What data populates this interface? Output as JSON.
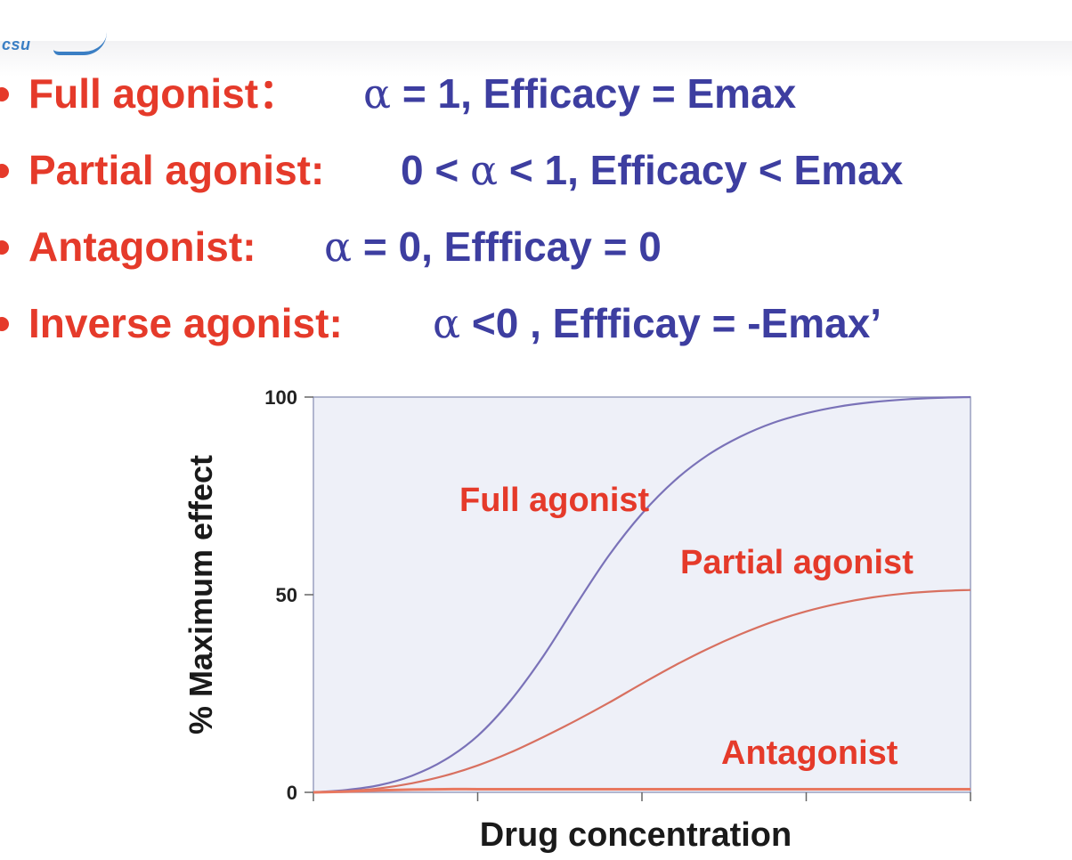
{
  "header": {
    "logo_text": "csu"
  },
  "bullets": [
    {
      "term": "Full agonist：",
      "formula_greek": "α",
      "formula_rest": " = 1,  Efficacy = Emax"
    },
    {
      "term": "Partial agonist:",
      "formula_prefix": " 0 < ",
      "formula_greek": "α",
      "formula_rest": " < 1,   Efficacy < Emax"
    },
    {
      "term": "Antagonist:",
      "formula_greek": "α",
      "formula_rest": " = 0,  Effficay = 0"
    },
    {
      "term": "Inverse agonist:",
      "formula_greek": "α",
      "formula_rest": " <0 ,  Effficay = -Emax’"
    }
  ],
  "colors": {
    "term": "#e53a2a",
    "formula": "#3d3ea0",
    "plot_background": "#eef0f8",
    "full_agonist_curve": "#7a72b8",
    "partial_agonist_curve": "#d87060",
    "antagonist_curve": "#e87860",
    "curve_label": "#e53a2a"
  },
  "chart_data": {
    "type": "line",
    "xlabel": "Drug concentration",
    "ylabel": "% Maximum effect",
    "ylim": [
      0,
      100
    ],
    "xlim": [
      0,
      1
    ],
    "yticks": [
      "0",
      "50",
      "100"
    ],
    "xticks_count": 5,
    "grid": false,
    "x": [
      0,
      0.05,
      0.1,
      0.15,
      0.2,
      0.25,
      0.3,
      0.35,
      0.4,
      0.45,
      0.5,
      0.55,
      0.6,
      0.65,
      0.7,
      0.75,
      0.8,
      0.85,
      0.9,
      0.95,
      1.0
    ],
    "series": [
      {
        "name": "Full agonist",
        "color": "#7a72b8",
        "values": [
          0,
          0.6,
          1.8,
          4.2,
          8.2,
          14.3,
          23.2,
          34.5,
          47.5,
          60.0,
          70.5,
          78.9,
          85.3,
          90.0,
          93.5,
          95.9,
          97.6,
          98.7,
          99.4,
          99.8,
          100
        ]
      },
      {
        "name": "Partial agonist",
        "color": "#d87060",
        "values": [
          0,
          0.3,
          1.0,
          2.3,
          4.2,
          6.8,
          10.1,
          14.0,
          18.2,
          22.7,
          27.5,
          32.1,
          36.3,
          40.0,
          43.2,
          45.8,
          47.8,
          49.3,
          50.3,
          50.9,
          51.2
        ]
      },
      {
        "name": "Antagonist",
        "color": "#e87860",
        "values": [
          0,
          0.2,
          0.5,
          0.7,
          0.8,
          0.8,
          0.8,
          0.8,
          0.8,
          0.8,
          0.8,
          0.8,
          0.8,
          0.8,
          0.8,
          0.8,
          0.8,
          0.8,
          0.8,
          0.8,
          0.8
        ]
      }
    ]
  }
}
